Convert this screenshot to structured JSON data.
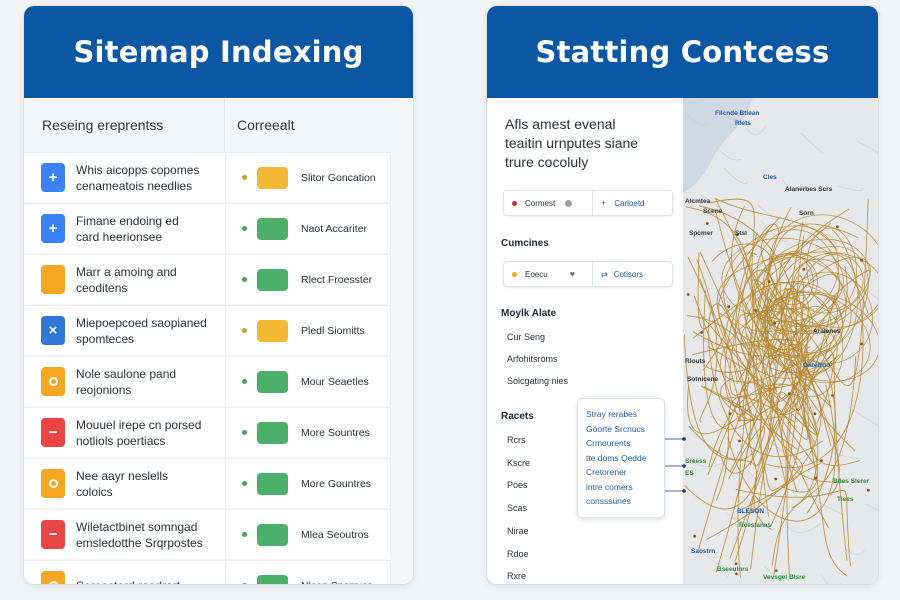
{
  "left_card": {
    "title": "Sitemap Indexing",
    "col_left_header": "Reseing ereprentss",
    "col_right_header": "Correealt",
    "rows": [
      {
        "icon": "plus-icon",
        "glyph": "+",
        "color": "#3b82f6",
        "line1": "Whis aicopps copomes",
        "line2": "cenameatois needlies"
      },
      {
        "icon": "plus-icon",
        "glyph": "+",
        "color": "#3b82f6",
        "line1": "Fimane endoing ed",
        "line2": "card heerionsee"
      },
      {
        "icon": "square-icon",
        "glyph": "",
        "color": "#f5a623",
        "line1": "Marr a amoing and",
        "line2": "ceoditens"
      },
      {
        "icon": "close-icon",
        "glyph": "×",
        "color": "#3178d6",
        "line1": "Miepoepcoed saopianed",
        "line2": "spomteces"
      },
      {
        "icon": "circle-icon",
        "glyph": "●",
        "color": "#f5a623",
        "line1": "Nole saulone pand",
        "line2": "reojonions"
      },
      {
        "icon": "dash-icon",
        "glyph": "−",
        "color": "#ea4444",
        "line1": "Mouuel irepe cn porsed",
        "line2": "notliols poertiacs"
      },
      {
        "icon": "circle-icon",
        "glyph": "●",
        "color": "#f5a623",
        "line1": "Nee aayr neslells",
        "line2": "coloics"
      },
      {
        "icon": "dash-icon",
        "glyph": "−",
        "color": "#ea4444",
        "line1": "Wiletactbinet somngad",
        "line2": "emsledotthe Srqrpostes"
      },
      {
        "icon": "circle-icon",
        "glyph": "●",
        "color": "#f5a623",
        "line1": "Seroocterd reodrart",
        "line2": ""
      }
    ],
    "statuses": [
      {
        "label": "Slitor Goncation",
        "color": "#f5b835",
        "dot": "#d89a2a"
      },
      {
        "label": "Naot Accariter",
        "color": "#4caf6a",
        "dot": "#43a35e"
      },
      {
        "label": "Rlect Froesster",
        "color": "#4caf6a",
        "dot": "#43a35e"
      },
      {
        "label": "Pledl Siomitts",
        "color": "#f5b835",
        "dot": "#b9a33a"
      },
      {
        "label": "Mour Seaetles",
        "color": "#4caf6a",
        "dot": "#43a35e"
      },
      {
        "label": "More Sountres",
        "color": "#4caf6a",
        "dot": "#43a35e"
      },
      {
        "label": "More Gountres",
        "color": "#4caf6a",
        "dot": "#43a35e"
      },
      {
        "label": "Mlea Seoutros",
        "color": "#4caf6a",
        "dot": "#43a35e"
      },
      {
        "label": "Nlesn Sporryes",
        "color": "#4caf6a",
        "dot": "#43a35e"
      }
    ]
  },
  "right_card": {
    "title": "Statting Contcess",
    "description": [
      "Afls amest evenal",
      "teaitin urnputes siane",
      "trure cocoluly"
    ],
    "control1": {
      "left_label": "Cormest",
      "left_dot": "#c0392b",
      "right_label": "Carloetd"
    },
    "section1_title": "Cumcines",
    "control2": {
      "left_label": "Eoecu",
      "left_dot": "#f5a623",
      "right_label": "Cotisors"
    },
    "section2_title": "Moylk Alate",
    "section2_items": [
      "Cur Seng",
      "Arfohitsroms",
      "Solcgating nies"
    ],
    "section3_title": "Racets",
    "section3_items": [
      "Rcrs",
      "Kscre",
      "Poes",
      "Scas",
      "Nirae",
      "Rdoe",
      "Rxre"
    ],
    "tooltip_items": [
      "Stray rerabes",
      "Goorte Srcnucs",
      "Crmourents",
      "tte doms Qedde",
      "Cretorener",
      "intre comers",
      "consssunes"
    ],
    "map_labels": [
      {
        "text": "Fllcnde Btiean",
        "color": "#1e5aa8"
      },
      {
        "text": "Rlets",
        "color": "#1e5aa8"
      },
      {
        "text": "Cles",
        "color": "#1e5aa8"
      },
      {
        "text": "Alanerbes Scrs",
        "color": "#333333"
      },
      {
        "text": "Alcmtea",
        "color": "#333333"
      },
      {
        "text": "Scene",
        "color": "#333333"
      },
      {
        "text": "Sorn",
        "color": "#333333"
      },
      {
        "text": "Spcmer",
        "color": "#333333"
      },
      {
        "text": "Stsl",
        "color": "#333333"
      },
      {
        "text": "Aralenes",
        "color": "#333333"
      },
      {
        "text": "Rlouts",
        "color": "#333333"
      },
      {
        "text": "Sotnicene",
        "color": "#333333"
      },
      {
        "text": "Gatetroo",
        "color": "#1e5aa8"
      },
      {
        "text": "Sreess",
        "color": "#2e8b3a"
      },
      {
        "text": "ES",
        "color": "#2e8b3a"
      },
      {
        "text": "Bdes Slerer",
        "color": "#2e8b3a"
      },
      {
        "text": "Tiees",
        "color": "#2e8b3a"
      },
      {
        "text": "BLESON",
        "color": "#1e5aa8"
      },
      {
        "text": "Rceslanas",
        "color": "#2e8b3a"
      },
      {
        "text": "Saostrn",
        "color": "#1e5aa8"
      },
      {
        "text": "Bseeulnrs",
        "color": "#2e8b3a"
      },
      {
        "text": "Vevsgel Blsre",
        "color": "#2e8b3a"
      }
    ]
  }
}
